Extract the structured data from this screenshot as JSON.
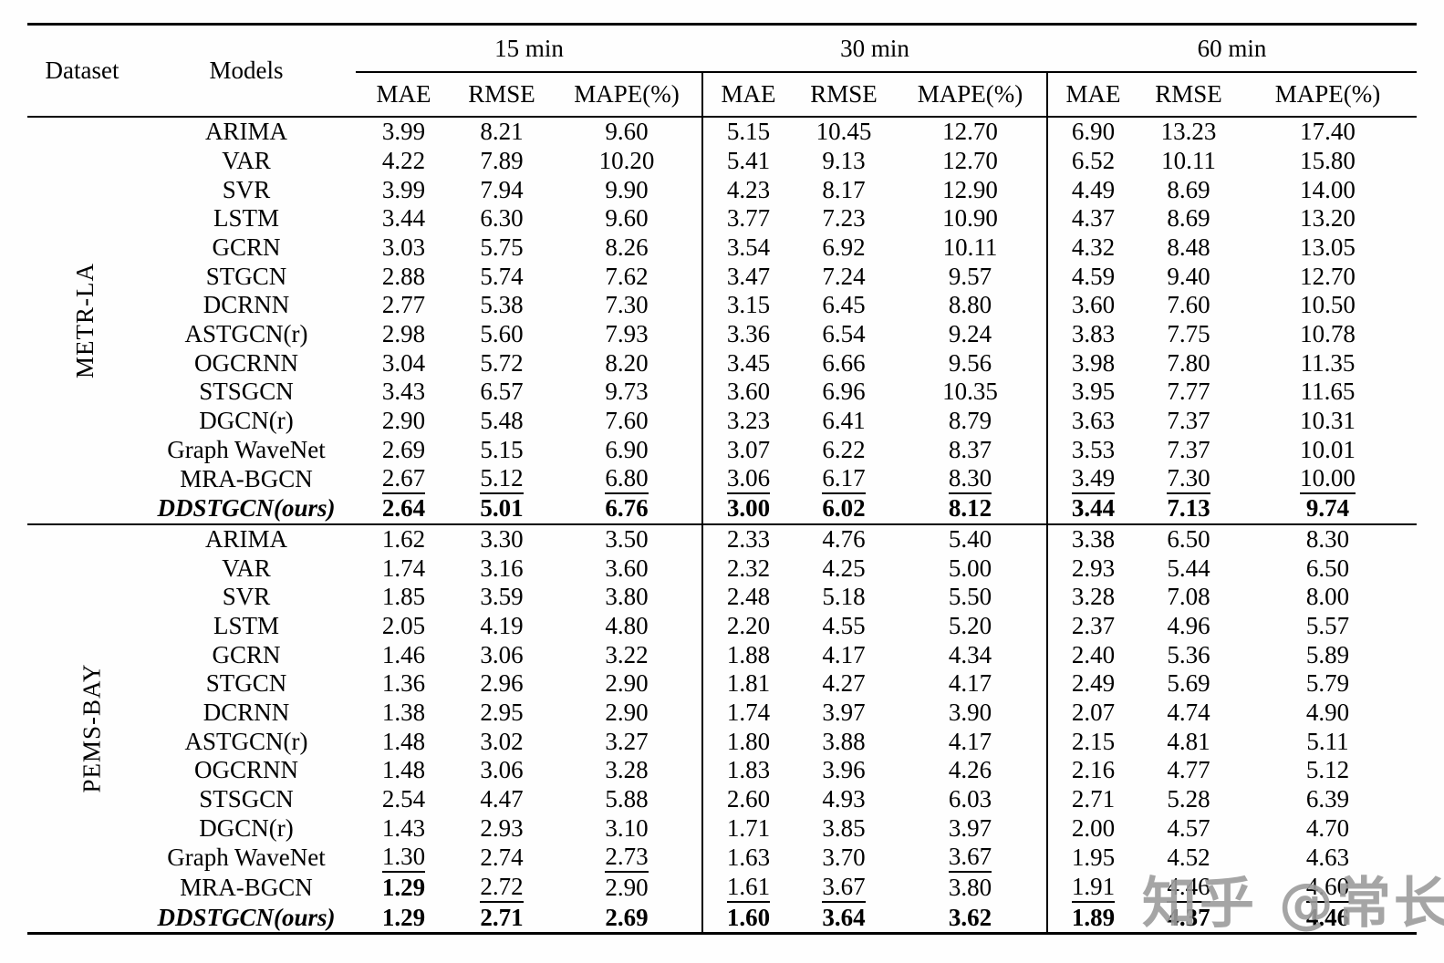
{
  "table": {
    "header": {
      "dataset": "Dataset",
      "models": "Models",
      "groups": [
        {
          "label": "15 min"
        },
        {
          "label": "30 min"
        },
        {
          "label": "60 min"
        }
      ],
      "metrics": [
        "MAE",
        "RMSE",
        "MAPE(%)"
      ]
    },
    "sections": [
      {
        "dataset": "METR-LA",
        "rows": [
          {
            "model": "ARIMA",
            "model_style": "normal",
            "values": [
              "3.99",
              "8.21",
              "9.60",
              "5.15",
              "10.45",
              "12.70",
              "6.90",
              "13.23",
              "17.40"
            ],
            "emphasis": [
              "",
              "",
              "",
              "",
              "",
              "",
              "",
              "",
              ""
            ]
          },
          {
            "model": "VAR",
            "model_style": "normal",
            "values": [
              "4.22",
              "7.89",
              "10.20",
              "5.41",
              "9.13",
              "12.70",
              "6.52",
              "10.11",
              "15.80"
            ],
            "emphasis": [
              "",
              "",
              "",
              "",
              "",
              "",
              "",
              "",
              ""
            ]
          },
          {
            "model": "SVR",
            "model_style": "normal",
            "values": [
              "3.99",
              "7.94",
              "9.90",
              "4.23",
              "8.17",
              "12.90",
              "4.49",
              "8.69",
              "14.00"
            ],
            "emphasis": [
              "",
              "",
              "",
              "",
              "",
              "",
              "",
              "",
              ""
            ]
          },
          {
            "model": "LSTM",
            "model_style": "normal",
            "values": [
              "3.44",
              "6.30",
              "9.60",
              "3.77",
              "7.23",
              "10.90",
              "4.37",
              "8.69",
              "13.20"
            ],
            "emphasis": [
              "",
              "",
              "",
              "",
              "",
              "",
              "",
              "",
              ""
            ]
          },
          {
            "model": "GCRN",
            "model_style": "normal",
            "values": [
              "3.03",
              "5.75",
              "8.26",
              "3.54",
              "6.92",
              "10.11",
              "4.32",
              "8.48",
              "13.05"
            ],
            "emphasis": [
              "",
              "",
              "",
              "",
              "",
              "",
              "",
              "",
              ""
            ]
          },
          {
            "model": "STGCN",
            "model_style": "normal",
            "values": [
              "2.88",
              "5.74",
              "7.62",
              "3.47",
              "7.24",
              "9.57",
              "4.59",
              "9.40",
              "12.70"
            ],
            "emphasis": [
              "",
              "",
              "",
              "",
              "",
              "",
              "",
              "",
              ""
            ]
          },
          {
            "model": "DCRNN",
            "model_style": "normal",
            "values": [
              "2.77",
              "5.38",
              "7.30",
              "3.15",
              "6.45",
              "8.80",
              "3.60",
              "7.60",
              "10.50"
            ],
            "emphasis": [
              "",
              "",
              "",
              "",
              "",
              "",
              "",
              "",
              ""
            ]
          },
          {
            "model": "ASTGCN(r)",
            "model_style": "normal",
            "values": [
              "2.98",
              "5.60",
              "7.93",
              "3.36",
              "6.54",
              "9.24",
              "3.83",
              "7.75",
              "10.78"
            ],
            "emphasis": [
              "",
              "",
              "",
              "",
              "",
              "",
              "",
              "",
              ""
            ]
          },
          {
            "model": "OGCRNN",
            "model_style": "normal",
            "values": [
              "3.04",
              "5.72",
              "8.20",
              "3.45",
              "6.66",
              "9.56",
              "3.98",
              "7.80",
              "11.35"
            ],
            "emphasis": [
              "",
              "",
              "",
              "",
              "",
              "",
              "",
              "",
              ""
            ]
          },
          {
            "model": "STSGCN",
            "model_style": "normal",
            "values": [
              "3.43",
              "6.57",
              "9.73",
              "3.60",
              "6.96",
              "10.35",
              "3.95",
              "7.77",
              "11.65"
            ],
            "emphasis": [
              "",
              "",
              "",
              "",
              "",
              "",
              "",
              "",
              ""
            ]
          },
          {
            "model": "DGCN(r)",
            "model_style": "normal",
            "values": [
              "2.90",
              "5.48",
              "7.60",
              "3.23",
              "6.41",
              "8.79",
              "3.63",
              "7.37",
              "10.31"
            ],
            "emphasis": [
              "",
              "",
              "",
              "",
              "",
              "",
              "",
              "",
              ""
            ]
          },
          {
            "model": "Graph WaveNet",
            "model_style": "normal",
            "values": [
              "2.69",
              "5.15",
              "6.90",
              "3.07",
              "6.22",
              "8.37",
              "3.53",
              "7.37",
              "10.01"
            ],
            "emphasis": [
              "",
              "",
              "",
              "",
              "",
              "",
              "",
              "",
              ""
            ]
          },
          {
            "model": "MRA-BGCN",
            "model_style": "normal",
            "values": [
              "2.67",
              "5.12",
              "6.80",
              "3.06",
              "6.17",
              "8.30",
              "3.49",
              "7.30",
              "10.00"
            ],
            "emphasis": [
              "u",
              "u",
              "u",
              "u",
              "u",
              "u",
              "u",
              "u",
              "u"
            ]
          },
          {
            "model": "DDSTGCN(ours)",
            "model_style": "bold-italic",
            "values": [
              "2.64",
              "5.01",
              "6.76",
              "3.00",
              "6.02",
              "8.12",
              "3.44",
              "7.13",
              "9.74"
            ],
            "emphasis": [
              "b",
              "b",
              "b",
              "b",
              "b",
              "b",
              "b",
              "b",
              "b"
            ]
          }
        ]
      },
      {
        "dataset": "PEMS-BAY",
        "rows": [
          {
            "model": "ARIMA",
            "model_style": "normal",
            "values": [
              "1.62",
              "3.30",
              "3.50",
              "2.33",
              "4.76",
              "5.40",
              "3.38",
              "6.50",
              "8.30"
            ],
            "emphasis": [
              "",
              "",
              "",
              "",
              "",
              "",
              "",
              "",
              ""
            ]
          },
          {
            "model": "VAR",
            "model_style": "normal",
            "values": [
              "1.74",
              "3.16",
              "3.60",
              "2.32",
              "4.25",
              "5.00",
              "2.93",
              "5.44",
              "6.50"
            ],
            "emphasis": [
              "",
              "",
              "",
              "",
              "",
              "",
              "",
              "",
              ""
            ]
          },
          {
            "model": "SVR",
            "model_style": "normal",
            "values": [
              "1.85",
              "3.59",
              "3.80",
              "2.48",
              "5.18",
              "5.50",
              "3.28",
              "7.08",
              "8.00"
            ],
            "emphasis": [
              "",
              "",
              "",
              "",
              "",
              "",
              "",
              "",
              ""
            ]
          },
          {
            "model": "LSTM",
            "model_style": "normal",
            "values": [
              "2.05",
              "4.19",
              "4.80",
              "2.20",
              "4.55",
              "5.20",
              "2.37",
              "4.96",
              "5.57"
            ],
            "emphasis": [
              "",
              "",
              "",
              "",
              "",
              "",
              "",
              "",
              ""
            ]
          },
          {
            "model": "GCRN",
            "model_style": "normal",
            "values": [
              "1.46",
              "3.06",
              "3.22",
              "1.88",
              "4.17",
              "4.34",
              "2.40",
              "5.36",
              "5.89"
            ],
            "emphasis": [
              "",
              "",
              "",
              "",
              "",
              "",
              "",
              "",
              ""
            ]
          },
          {
            "model": "STGCN",
            "model_style": "normal",
            "values": [
              "1.36",
              "2.96",
              "2.90",
              "1.81",
              "4.27",
              "4.17",
              "2.49",
              "5.69",
              "5.79"
            ],
            "emphasis": [
              "",
              "",
              "",
              "",
              "",
              "",
              "",
              "",
              ""
            ]
          },
          {
            "model": "DCRNN",
            "model_style": "normal",
            "values": [
              "1.38",
              "2.95",
              "2.90",
              "1.74",
              "3.97",
              "3.90",
              "2.07",
              "4.74",
              "4.90"
            ],
            "emphasis": [
              "",
              "",
              "",
              "",
              "",
              "",
              "",
              "",
              ""
            ]
          },
          {
            "model": "ASTGCN(r)",
            "model_style": "normal",
            "values": [
              "1.48",
              "3.02",
              "3.27",
              "1.80",
              "3.88",
              "4.17",
              "2.15",
              "4.81",
              "5.11"
            ],
            "emphasis": [
              "",
              "",
              "",
              "",
              "",
              "",
              "",
              "",
              ""
            ]
          },
          {
            "model": "OGCRNN",
            "model_style": "normal",
            "values": [
              "1.48",
              "3.06",
              "3.28",
              "1.83",
              "3.96",
              "4.26",
              "2.16",
              "4.77",
              "5.12"
            ],
            "emphasis": [
              "",
              "",
              "",
              "",
              "",
              "",
              "",
              "",
              ""
            ]
          },
          {
            "model": "STSGCN",
            "model_style": "normal",
            "values": [
              "2.54",
              "4.47",
              "5.88",
              "2.60",
              "4.93",
              "6.03",
              "2.71",
              "5.28",
              "6.39"
            ],
            "emphasis": [
              "",
              "",
              "",
              "",
              "",
              "",
              "",
              "",
              ""
            ]
          },
          {
            "model": "DGCN(r)",
            "model_style": "normal",
            "values": [
              "1.43",
              "2.93",
              "3.10",
              "1.71",
              "3.85",
              "3.97",
              "2.00",
              "4.57",
              "4.70"
            ],
            "emphasis": [
              "",
              "",
              "",
              "",
              "",
              "",
              "",
              "",
              ""
            ]
          },
          {
            "model": "Graph WaveNet",
            "model_style": "normal",
            "values": [
              "1.30",
              "2.74",
              "2.73",
              "1.63",
              "3.70",
              "3.67",
              "1.95",
              "4.52",
              "4.63"
            ],
            "emphasis": [
              "u",
              "",
              "u",
              "",
              "",
              "u",
              "",
              "",
              ""
            ]
          },
          {
            "model": "MRA-BGCN",
            "model_style": "normal",
            "values": [
              "1.29",
              "2.72",
              "2.90",
              "1.61",
              "3.67",
              "3.80",
              "1.91",
              "4.46",
              "4.60"
            ],
            "emphasis": [
              "b",
              "u",
              "",
              "u",
              "u",
              "",
              "u",
              "u",
              "u"
            ]
          },
          {
            "model": "DDSTGCN(ours)",
            "model_style": "bold-italic",
            "values": [
              "1.29",
              "2.71",
              "2.69",
              "1.60",
              "3.64",
              "3.62",
              "1.89",
              "4.37",
              "4.46"
            ],
            "emphasis": [
              "b",
              "b",
              "b",
              "b",
              "b",
              "b",
              "b",
              "b",
              "b"
            ]
          }
        ]
      }
    ]
  },
  "watermark": {
    "text": "知乎 @常长",
    "color": "#9b9b9b"
  }
}
